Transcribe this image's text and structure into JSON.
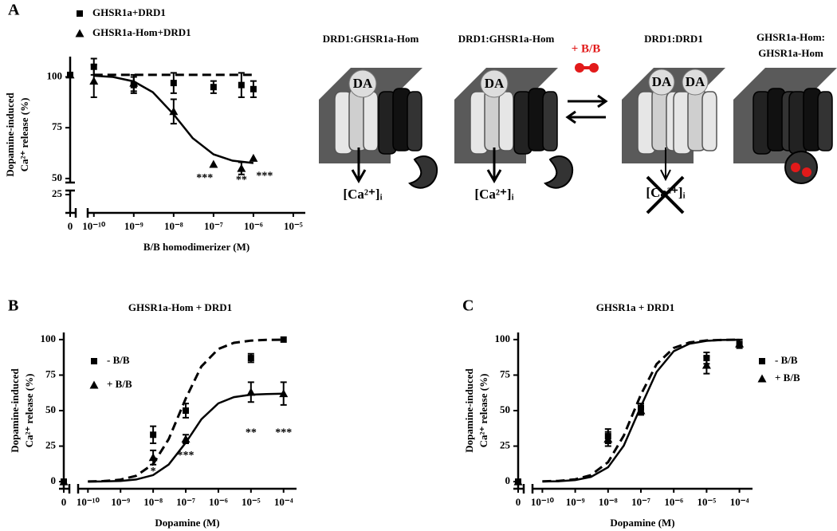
{
  "chart_data": [
    {
      "type": "scatter",
      "panel": "A",
      "xlabel": "B/B homodimerizer (M)",
      "ylabel": [
        "Dopamine-induced",
        "Ca²⁺ release (%)"
      ],
      "xscale": "log",
      "xlim": [
        7e-11,
        2e-05
      ],
      "ylim": [
        16,
        110
      ],
      "ybreak": [
        27,
        48
      ],
      "xticks": [
        0,
        {
          "value": 1e-10,
          "label": "10⁻¹⁰"
        },
        {
          "value": 1e-09,
          "label": "10⁻⁹"
        },
        {
          "value": 1e-08,
          "label": "10⁻⁸"
        },
        {
          "value": 1e-07,
          "label": "10⁻⁷"
        },
        {
          "value": 1e-06,
          "label": "10⁻⁶"
        },
        {
          "value": 1e-05,
          "label": "10⁻⁵"
        }
      ],
      "yticks": [
        25,
        50,
        75,
        100
      ],
      "legend": "above",
      "series": [
        {
          "name": "GHSR1a+DRD1",
          "color": "#000000",
          "marker": "square",
          "x": [
            0,
            1e-10,
            1e-09,
            1e-08,
            1e-07,
            5e-07,
            1e-06
          ],
          "values": [
            101,
            105,
            96,
            97,
            95,
            96,
            94
          ],
          "errors": [
            null,
            4,
            4,
            5,
            3,
            6,
            4
          ]
        },
        {
          "name": "GHSR1a-Hom+DRD1",
          "color": "#000000",
          "marker": "triangle",
          "x": [
            0,
            1e-10,
            1e-09,
            1e-08,
            1e-07,
            5e-07,
            1e-06
          ],
          "values": [
            101,
            98,
            97,
            83,
            57,
            55,
            60
          ],
          "errors": [
            null,
            8,
            4,
            6,
            null,
            3,
            null
          ]
        },
        {
          "color": "#000000",
          "line": "dashed",
          "x": [
            1e-10,
            1e-06
          ],
          "values": [
            101,
            101
          ]
        },
        {
          "color": "#000000",
          "line": "solid",
          "x": [
            1e-10,
            3e-10,
            1e-09,
            3e-09,
            1e-08,
            3e-08,
            1e-07,
            3e-07,
            1e-06
          ],
          "values": [
            100.6,
            100,
            97.8,
            92.5,
            81.6,
            69.9,
            61.9,
            58.8,
            57.6
          ]
        }
      ],
      "annotations": [
        {
          "text": "***",
          "x": 6e-08,
          "y": 50
        },
        {
          "text": "**",
          "x": 5e-07,
          "y": 49
        },
        {
          "text": "***",
          "x": 1.9e-06,
          "y": 51
        }
      ]
    },
    {
      "type": "scatter",
      "panel": "B",
      "title": "GHSR1a-Hom + DRD1",
      "xlabel": "Dopamine (M)",
      "ylabel": [
        "Dopamine-induced",
        "Ca²⁺ release (%)"
      ],
      "xscale": "log",
      "xlim": [
        5e-11,
        0.00025
      ],
      "ylim": [
        -5,
        105
      ],
      "xticks": [
        0,
        {
          "value": 1e-10,
          "label": "10⁻¹⁰"
        },
        {
          "value": 1e-09,
          "label": "10⁻⁹"
        },
        {
          "value": 1e-08,
          "label": "10⁻⁸"
        },
        {
          "value": 1e-07,
          "label": "10⁻⁷"
        },
        {
          "value": 1e-06,
          "label": "10⁻⁶"
        },
        {
          "value": 1e-05,
          "label": "10⁻⁵"
        },
        {
          "value": 0.0001,
          "label": "10⁻⁴"
        }
      ],
      "yticks": [
        0,
        25,
        50,
        75,
        100
      ],
      "legend": "upper left",
      "series": [
        {
          "name": "- B/B",
          "color": "#000000",
          "marker": "square",
          "x": [
            0,
            1e-08,
            1e-07,
            1e-05,
            0.0001
          ],
          "values": [
            0,
            33,
            50,
            87,
            100
          ],
          "errors": [
            null,
            6,
            5,
            3,
            null
          ]
        },
        {
          "name": "+ B/B",
          "color": "#000000",
          "marker": "triangle",
          "x": [
            0,
            1e-08,
            1e-07,
            1e-05,
            0.0001
          ],
          "values": [
            0,
            17,
            30,
            63,
            62
          ],
          "errors": [
            null,
            5,
            3,
            7,
            8
          ]
        },
        {
          "color": "#000000",
          "line": "dashed",
          "x": [
            1e-10,
            3e-10,
            1e-09,
            3e-09,
            1e-08,
            3e-08,
            1e-07,
            3e-07,
            1e-06,
            3e-06,
            1e-05,
            3e-05,
            0.0001
          ],
          "values": [
            0.1,
            0.4,
            1.4,
            4.1,
            12.4,
            29.9,
            58.5,
            81.0,
            93.4,
            97.7,
            99.3,
            99.8,
            99.9
          ]
        },
        {
          "color": "#000000",
          "line": "solid",
          "x": [
            1e-10,
            3e-10,
            1e-09,
            3e-09,
            1e-08,
            3e-08,
            1e-07,
            3e-07,
            1e-06,
            3e-06,
            1e-05,
            3e-05,
            0.0001
          ],
          "values": [
            0.05,
            0.15,
            0.5,
            1.5,
            4.6,
            12.0,
            27.4,
            43.8,
            55.1,
            59.5,
            61.2,
            61.7,
            61.9
          ]
        }
      ],
      "annotations": [
        {
          "text": "*",
          "x": 1e-08,
          "y": 7
        },
        {
          "text": "***",
          "x": 1e-07,
          "y": 18
        },
        {
          "text": "**",
          "x": 1e-05,
          "y": 34
        },
        {
          "text": "***",
          "x": 0.0001,
          "y": 34
        }
      ]
    },
    {
      "type": "scatter",
      "panel": "C",
      "title": "GHSR1a + DRD1",
      "xlabel": "Dopamine (M)",
      "ylabel": [
        "Dopamine-induced",
        "Ca²⁺ release (%)"
      ],
      "xscale": "log",
      "xlim": [
        5e-11,
        0.00025
      ],
      "ylim": [
        -5,
        105
      ],
      "xticks": [
        0,
        {
          "value": 1e-10,
          "label": "10⁻¹⁰"
        },
        {
          "value": 1e-09,
          "label": "10⁻⁹"
        },
        {
          "value": 1e-08,
          "label": "10⁻⁸"
        },
        {
          "value": 1e-07,
          "label": "10⁻⁷"
        },
        {
          "value": 1e-06,
          "label": "10⁻⁶"
        },
        {
          "value": 1e-05,
          "label": "10⁻⁵"
        },
        {
          "value": 0.0001,
          "label": "10⁻⁴"
        }
      ],
      "yticks": [
        0,
        25,
        50,
        75,
        100
      ],
      "legend": "right",
      "series": [
        {
          "name": "- B/B",
          "color": "#000000",
          "marker": "square",
          "x": [
            0,
            1e-08,
            1e-07,
            1e-05,
            0.0001
          ],
          "values": [
            0,
            32,
            52,
            87,
            97
          ],
          "errors": [
            null,
            5,
            3,
            4,
            3
          ]
        },
        {
          "name": "+ B/B",
          "color": "#000000",
          "marker": "triangle",
          "x": [
            0,
            1e-08,
            1e-07,
            1e-05,
            0.0001
          ],
          "values": [
            0,
            30,
            50,
            82,
            97
          ],
          "errors": [
            null,
            5,
            3,
            6,
            null
          ]
        },
        {
          "color": "#000000",
          "line": "dashed",
          "x": [
            1e-10,
            3e-10,
            1e-09,
            3e-09,
            1e-08,
            3e-08,
            1e-07,
            3e-07,
            1e-06,
            3e-06,
            1e-05,
            3e-05,
            0.0001
          ],
          "values": [
            0.2,
            0.5,
            1.6,
            4.6,
            13.7,
            32.4,
            61.3,
            82.7,
            94.1,
            98.0,
            99.4,
            99.8,
            99.9
          ]
        },
        {
          "color": "#000000",
          "line": "solid",
          "x": [
            1e-10,
            3e-10,
            1e-09,
            3e-09,
            1e-08,
            3e-08,
            1e-07,
            3e-07,
            1e-06,
            3e-06,
            1e-05,
            3e-05,
            0.0001
          ],
          "values": [
            0.1,
            0.3,
            1.1,
            3.3,
            10.1,
            25.3,
            52.9,
            77.2,
            91.8,
            97.1,
            99.1,
            99.7,
            99.9
          ]
        }
      ]
    }
  ],
  "diagram": {
    "labels": [
      "DRD1:GHSR1a-Hom",
      "DRD1:GHSR1a-Hom",
      "DRD1:DRD1",
      "GHSR1a-Hom:",
      "GHSR1a-Hom"
    ],
    "ligands": [
      "DA",
      "DA",
      "DA",
      "DA"
    ],
    "readouts": [
      "[Ca²⁺]ᵢ",
      "[Ca²⁺]ᵢ",
      "[Ca²⁺]ᵢ"
    ],
    "treatment": "+ B/B"
  }
}
